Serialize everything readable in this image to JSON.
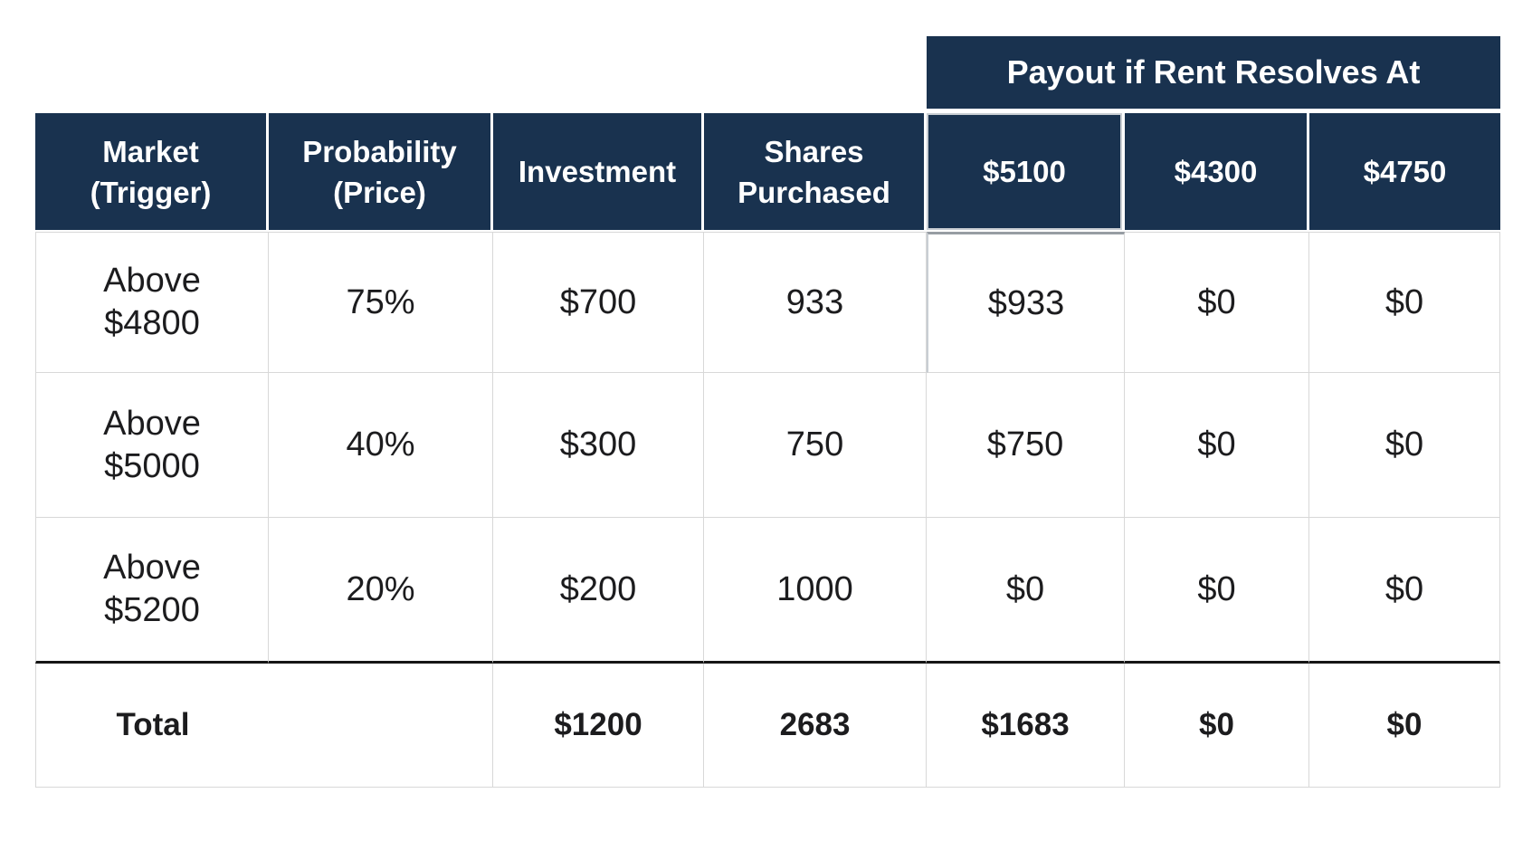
{
  "colors": {
    "header_bg": "#19324F",
    "header_text": "#FFFFFF",
    "body_text": "#1C1C1E",
    "grid": "#D8D8D8",
    "thick_rule": "#161616",
    "selection_outline": "#C9CED3",
    "selection_edge": "#979DA3"
  },
  "spanner": {
    "label": "Payout if Rent Resolves At"
  },
  "headers": {
    "market": {
      "line1": "Market",
      "line2": "(Trigger)"
    },
    "probability": {
      "line1": "Probability",
      "line2": "(Price)"
    },
    "investment": "Investment",
    "shares": {
      "line1": "Shares",
      "line2": "Purchased"
    },
    "payouts": [
      "$5100",
      "$4300",
      "$4750"
    ]
  },
  "rows": [
    {
      "market": {
        "line1": "Above",
        "line2": "$4800"
      },
      "probability": "75%",
      "investment": "$700",
      "shares": "933",
      "payouts": [
        "$933",
        "$0",
        "$0"
      ]
    },
    {
      "market": {
        "line1": "Above",
        "line2": "$5000"
      },
      "probability": "40%",
      "investment": "$300",
      "shares": "750",
      "payouts": [
        "$750",
        "$0",
        "$0"
      ]
    },
    {
      "market": {
        "line1": "Above",
        "line2": "$5200"
      },
      "probability": "20%",
      "investment": "$200",
      "shares": "1000",
      "payouts": [
        "$0",
        "$0",
        "$0"
      ]
    }
  ],
  "total": {
    "label": "Total",
    "investment": "$1200",
    "shares": "2683",
    "payouts": [
      "$1683",
      "$0",
      "$0"
    ]
  },
  "chart_data": {
    "type": "table",
    "title": "Payout if Rent Resolves At",
    "spanner": {
      "label": "Payout if Rent Resolves At",
      "spans_columns": [
        "$5100",
        "$4300",
        "$4750"
      ]
    },
    "columns": [
      "Market (Trigger)",
      "Probability (Price)",
      "Investment",
      "Shares Purchased",
      "$5100",
      "$4300",
      "$4750"
    ],
    "rows": [
      [
        "Above $4800",
        "75%",
        "$700",
        "933",
        "$933",
        "$0",
        "$0"
      ],
      [
        "Above $5000",
        "40%",
        "$300",
        "750",
        "$750",
        "$0",
        "$0"
      ],
      [
        "Above $5200",
        "20%",
        "$200",
        "1000",
        "$0",
        "$0",
        "$0"
      ],
      [
        "Total",
        "",
        "$1200",
        "2683",
        "$1683",
        "$0",
        "$0"
      ]
    ]
  }
}
